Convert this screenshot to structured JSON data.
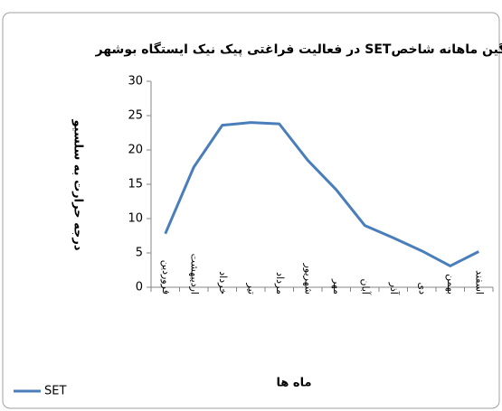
{
  "chart_data": {
    "type": "line",
    "title": "میانگین ماهانه شاخصSET در فعالیت فراغتی پیک نیک ایستگاه بوشهر",
    "y_label": "درجه حرارت به سلسیو",
    "x_label": "ماه ها",
    "categories": [
      "فروردین",
      "اردیبهشت",
      "خرداد",
      "تیر",
      "مرداد",
      "شهریور",
      "مهر",
      "آبان",
      "آذر",
      "دی",
      "بهمن",
      "اسفند"
    ],
    "series": [
      {
        "name": "SET",
        "color": "#4a7ebb",
        "values": [
          7.8,
          17.5,
          23.6,
          24.0,
          23.8,
          18.5,
          14.2,
          9.0,
          7.2,
          5.3,
          3.1,
          5.2
        ]
      }
    ],
    "ylim": [
      0,
      30
    ],
    "yticks": [
      0,
      5,
      10,
      15,
      20,
      25,
      30
    ],
    "grid": false,
    "legend": "bottom-left"
  }
}
